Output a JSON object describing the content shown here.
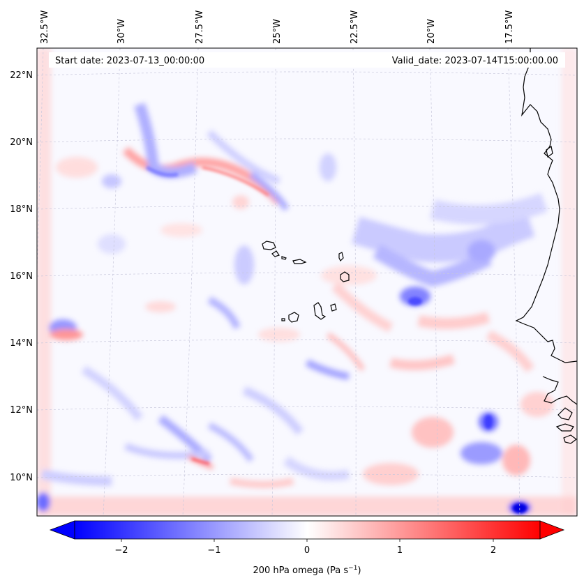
{
  "map": {
    "header": {
      "start_date": "Start date: 2023-07-13_00:00:00",
      "valid_date": "Valid_date: 2023-07-14T15:00:00.00"
    },
    "lon_labels": [
      "32.5°W",
      "30°W",
      "27.5°W",
      "25°W",
      "22.5°W",
      "20°W",
      "17.5°W"
    ],
    "lat_labels": [
      "22°N",
      "20°N",
      "18°N",
      "16°N",
      "14°N",
      "12°N",
      "10°N"
    ],
    "colorbar": {
      "ticks": [
        "−2",
        "−1",
        "0",
        "1",
        "2"
      ],
      "label_main": "200 hPa omega (Pa s",
      "label_sup": "−1",
      "label_close": ")",
      "colormap": "bwr",
      "range": [
        -2.5,
        2.5
      ],
      "extend": "both"
    },
    "colors": {
      "negative": "#0000ff",
      "neutral": "#ffffff",
      "positive": "#ff0000",
      "coastline": "#000000",
      "gridline": "#c8c8dc"
    }
  }
}
